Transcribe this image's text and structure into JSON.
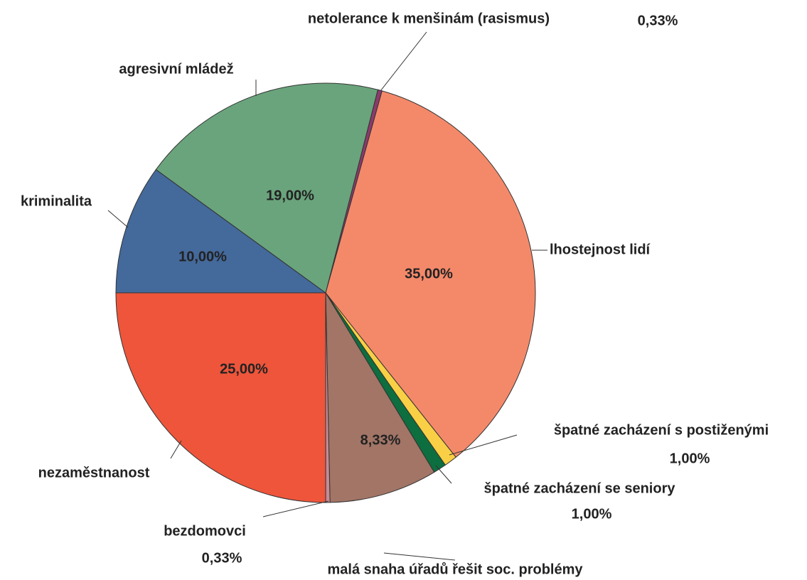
{
  "chart_data": {
    "type": "pie",
    "categories": [
      "netolerance k menšinám (rasismus)",
      "lhostejnost lidí",
      "špatné zacházení s postiženými",
      "špatné zacházení se seniory",
      "malá snaha úřadů řešit soc. problémy",
      "bezdomovci",
      "nezaměstnanost",
      "kriminalita",
      "agresivní mládež"
    ],
    "values": [
      0.33,
      35,
      1,
      1,
      8.33,
      0.33,
      25,
      10,
      19
    ],
    "value_labels": [
      "0,33%",
      "35,00%",
      "1,00%",
      "1,00%",
      "8,33%",
      "0,33%",
      "25,00%",
      "10,00%",
      "19,00%"
    ],
    "colors": [
      "#8b3a6b",
      "#f4896a",
      "#f9cf45",
      "#0d6e3f",
      "#a27566",
      "#c98a94",
      "#ee553b",
      "#44699b",
      "#6aa47c"
    ]
  }
}
